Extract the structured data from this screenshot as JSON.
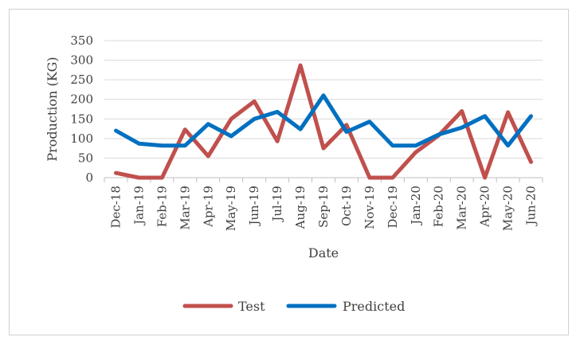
{
  "chart_data": {
    "type": "line",
    "title": "",
    "xlabel": "Date",
    "ylabel": "Production (KG)",
    "ylim": [
      0,
      350
    ],
    "yticks": [
      0,
      50,
      100,
      150,
      200,
      250,
      300,
      350
    ],
    "grid": "horizontal",
    "legend": "bottom",
    "categories": [
      "Dec-18",
      "Jan-19",
      "Feb-19",
      "Mar-19",
      "Apr-19",
      "May-19",
      "Jun-19",
      "Jul-19",
      "Aug-19",
      "Sep-19",
      "Oct-19",
      "Nov-19",
      "Dec-19",
      "Jan-20",
      "Feb-20",
      "Mar-20",
      "Apr-20",
      "May-20",
      "Jun-20"
    ],
    "series": [
      {
        "name": "Test",
        "color": "#c0504d",
        "values": [
          12,
          0,
          0,
          123,
          55,
          150,
          195,
          93,
          287,
          75,
          135,
          0,
          0,
          65,
          108,
          170,
          0,
          167,
          40
        ]
      },
      {
        "name": "Predicted",
        "color": "#0070c0",
        "values": [
          120,
          87,
          82,
          82,
          137,
          106,
          150,
          168,
          124,
          210,
          117,
          143,
          82,
          82,
          110,
          128,
          157,
          82,
          157
        ]
      }
    ]
  }
}
